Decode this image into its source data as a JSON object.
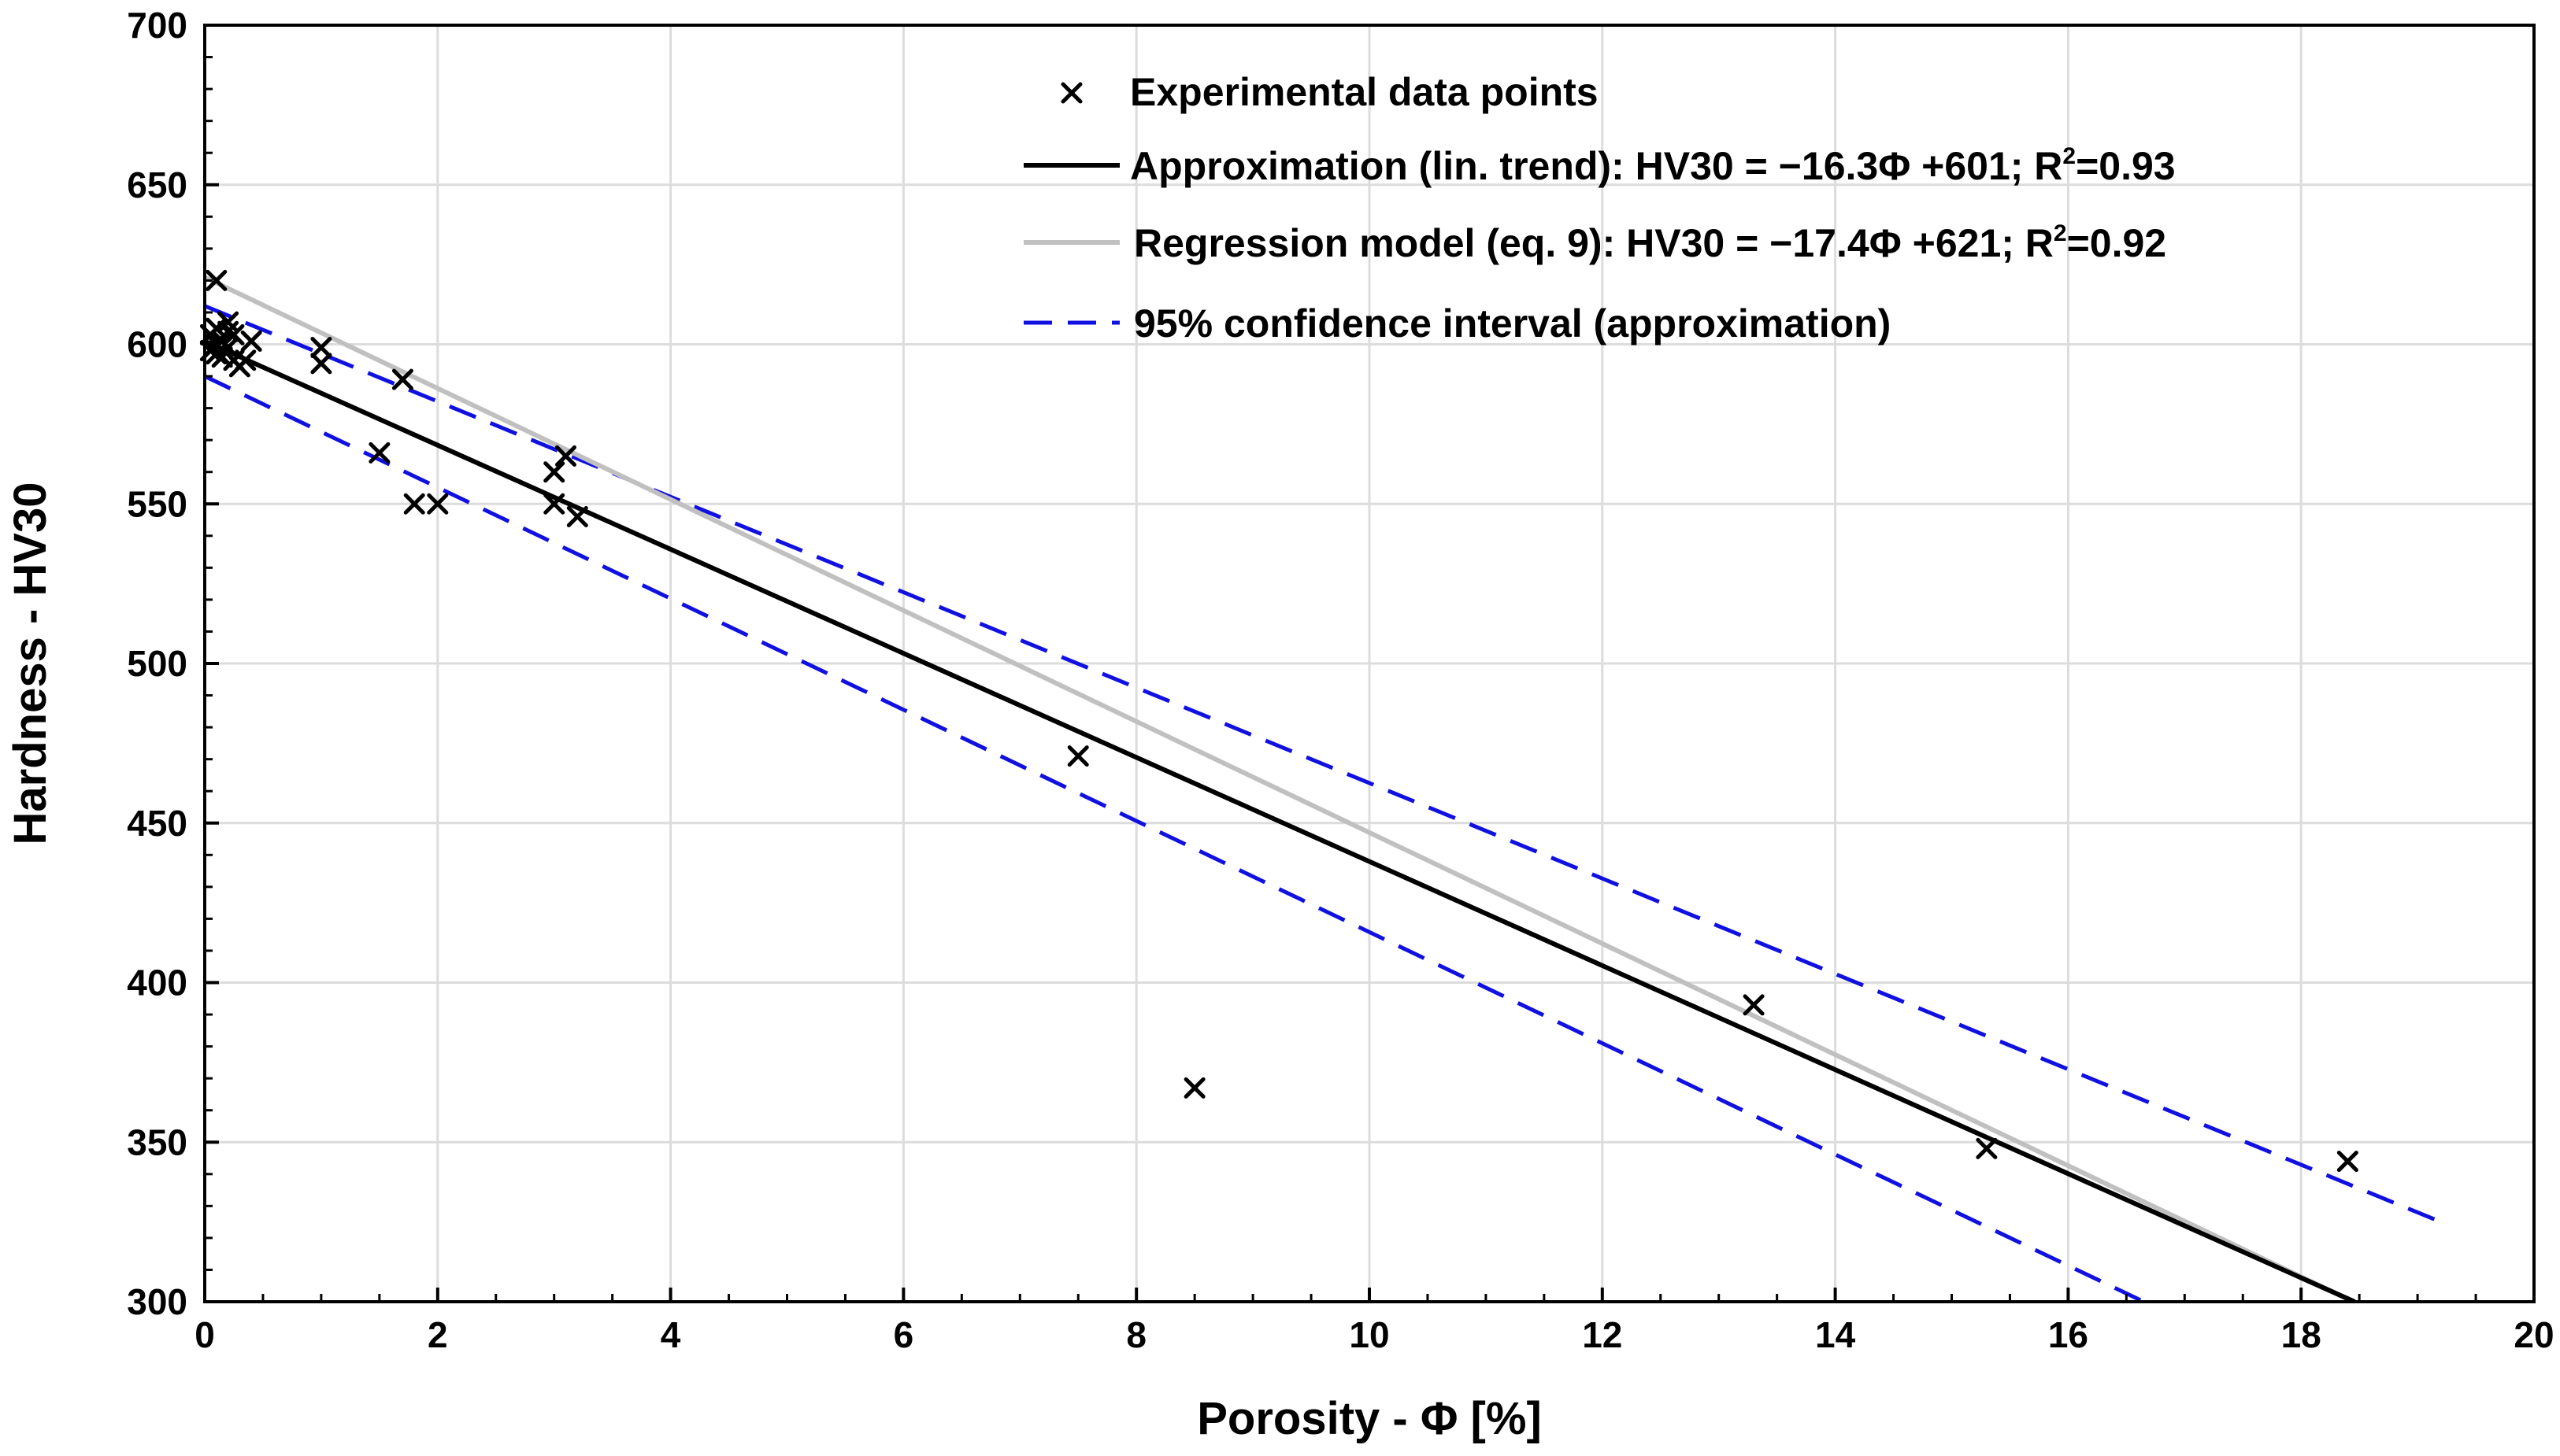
{
  "chart_data": {
    "type": "scatter",
    "title": "",
    "xlabel": "Porosity - Φ [%]",
    "ylabel": "Hardness - HV30",
    "xlim": [
      0,
      20
    ],
    "ylim": [
      300,
      700
    ],
    "xticks": [
      0,
      2,
      4,
      6,
      8,
      10,
      12,
      14,
      16,
      18,
      20
    ],
    "yticks": [
      300,
      350,
      400,
      450,
      500,
      550,
      600,
      650,
      700
    ],
    "xtick_labels": [
      "0",
      "2",
      "4",
      "6",
      "8",
      "10",
      "12",
      "14",
      "16",
      "18",
      "20"
    ],
    "ytick_labels": [
      "300",
      "350",
      "400",
      "450",
      "500",
      "550",
      "600",
      "650",
      "700"
    ],
    "grid": true,
    "legend_position": "top-center",
    "legend": [
      {
        "key": "points",
        "text": "Experimental data points",
        "sup": "",
        "tail": ""
      },
      {
        "key": "approx",
        "text": "Approximation (lin. trend): HV30 = −16.3Φ +601; R",
        "sup": "2",
        "tail": "=0.93"
      },
      {
        "key": "regression",
        "text": "Regression model (eq. 9): HV30 = −17.4Φ +621; R",
        "sup": "2",
        "tail": "=0.92"
      },
      {
        "key": "ci",
        "text": "95% confidence interval (approximation)",
        "sup": "",
        "tail": ""
      }
    ],
    "colors": {
      "points": "#000000",
      "approx": "#000000",
      "regression": "#c0c0c0",
      "ci": "#1010e0",
      "grid": "#dcdcdc",
      "axis": "#000000"
    },
    "points": [
      {
        "x": 0.05,
        "y": 598
      },
      {
        "x": 0.05,
        "y": 603
      },
      {
        "x": 0.1,
        "y": 620
      },
      {
        "x": 0.1,
        "y": 605
      },
      {
        "x": 0.1,
        "y": 600
      },
      {
        "x": 0.1,
        "y": 597
      },
      {
        "x": 0.15,
        "y": 601
      },
      {
        "x": 0.15,
        "y": 596
      },
      {
        "x": 0.2,
        "y": 604
      },
      {
        "x": 0.2,
        "y": 607
      },
      {
        "x": 0.2,
        "y": 599
      },
      {
        "x": 0.25,
        "y": 603
      },
      {
        "x": 0.25,
        "y": 595
      },
      {
        "x": 0.3,
        "y": 593
      },
      {
        "x": 0.35,
        "y": 595
      },
      {
        "x": 0.4,
        "y": 601
      },
      {
        "x": 1.0,
        "y": 599
      },
      {
        "x": 1.0,
        "y": 594
      },
      {
        "x": 1.5,
        "y": 566
      },
      {
        "x": 1.7,
        "y": 589
      },
      {
        "x": 1.8,
        "y": 550
      },
      {
        "x": 2.0,
        "y": 550
      },
      {
        "x": 3.0,
        "y": 560
      },
      {
        "x": 3.0,
        "y": 550
      },
      {
        "x": 3.1,
        "y": 565
      },
      {
        "x": 3.2,
        "y": 546
      },
      {
        "x": 7.5,
        "y": 471
      },
      {
        "x": 8.5,
        "y": 367
      },
      {
        "x": 13.3,
        "y": 393
      },
      {
        "x": 15.3,
        "y": 348
      },
      {
        "x": 18.4,
        "y": 344
      }
    ],
    "lines": {
      "approx": {
        "x": [
          0,
          18.46
        ],
        "y": [
          601,
          300
        ]
      },
      "regression": {
        "x": [
          0,
          18.45
        ],
        "y": [
          621,
          300
        ]
      },
      "ci_upper": {
        "x": [
          0,
          19.2
        ],
        "y": [
          612,
          325
        ]
      },
      "ci_lower": {
        "x": [
          0,
          16.65
        ],
        "y": [
          590,
          300
        ]
      }
    }
  }
}
